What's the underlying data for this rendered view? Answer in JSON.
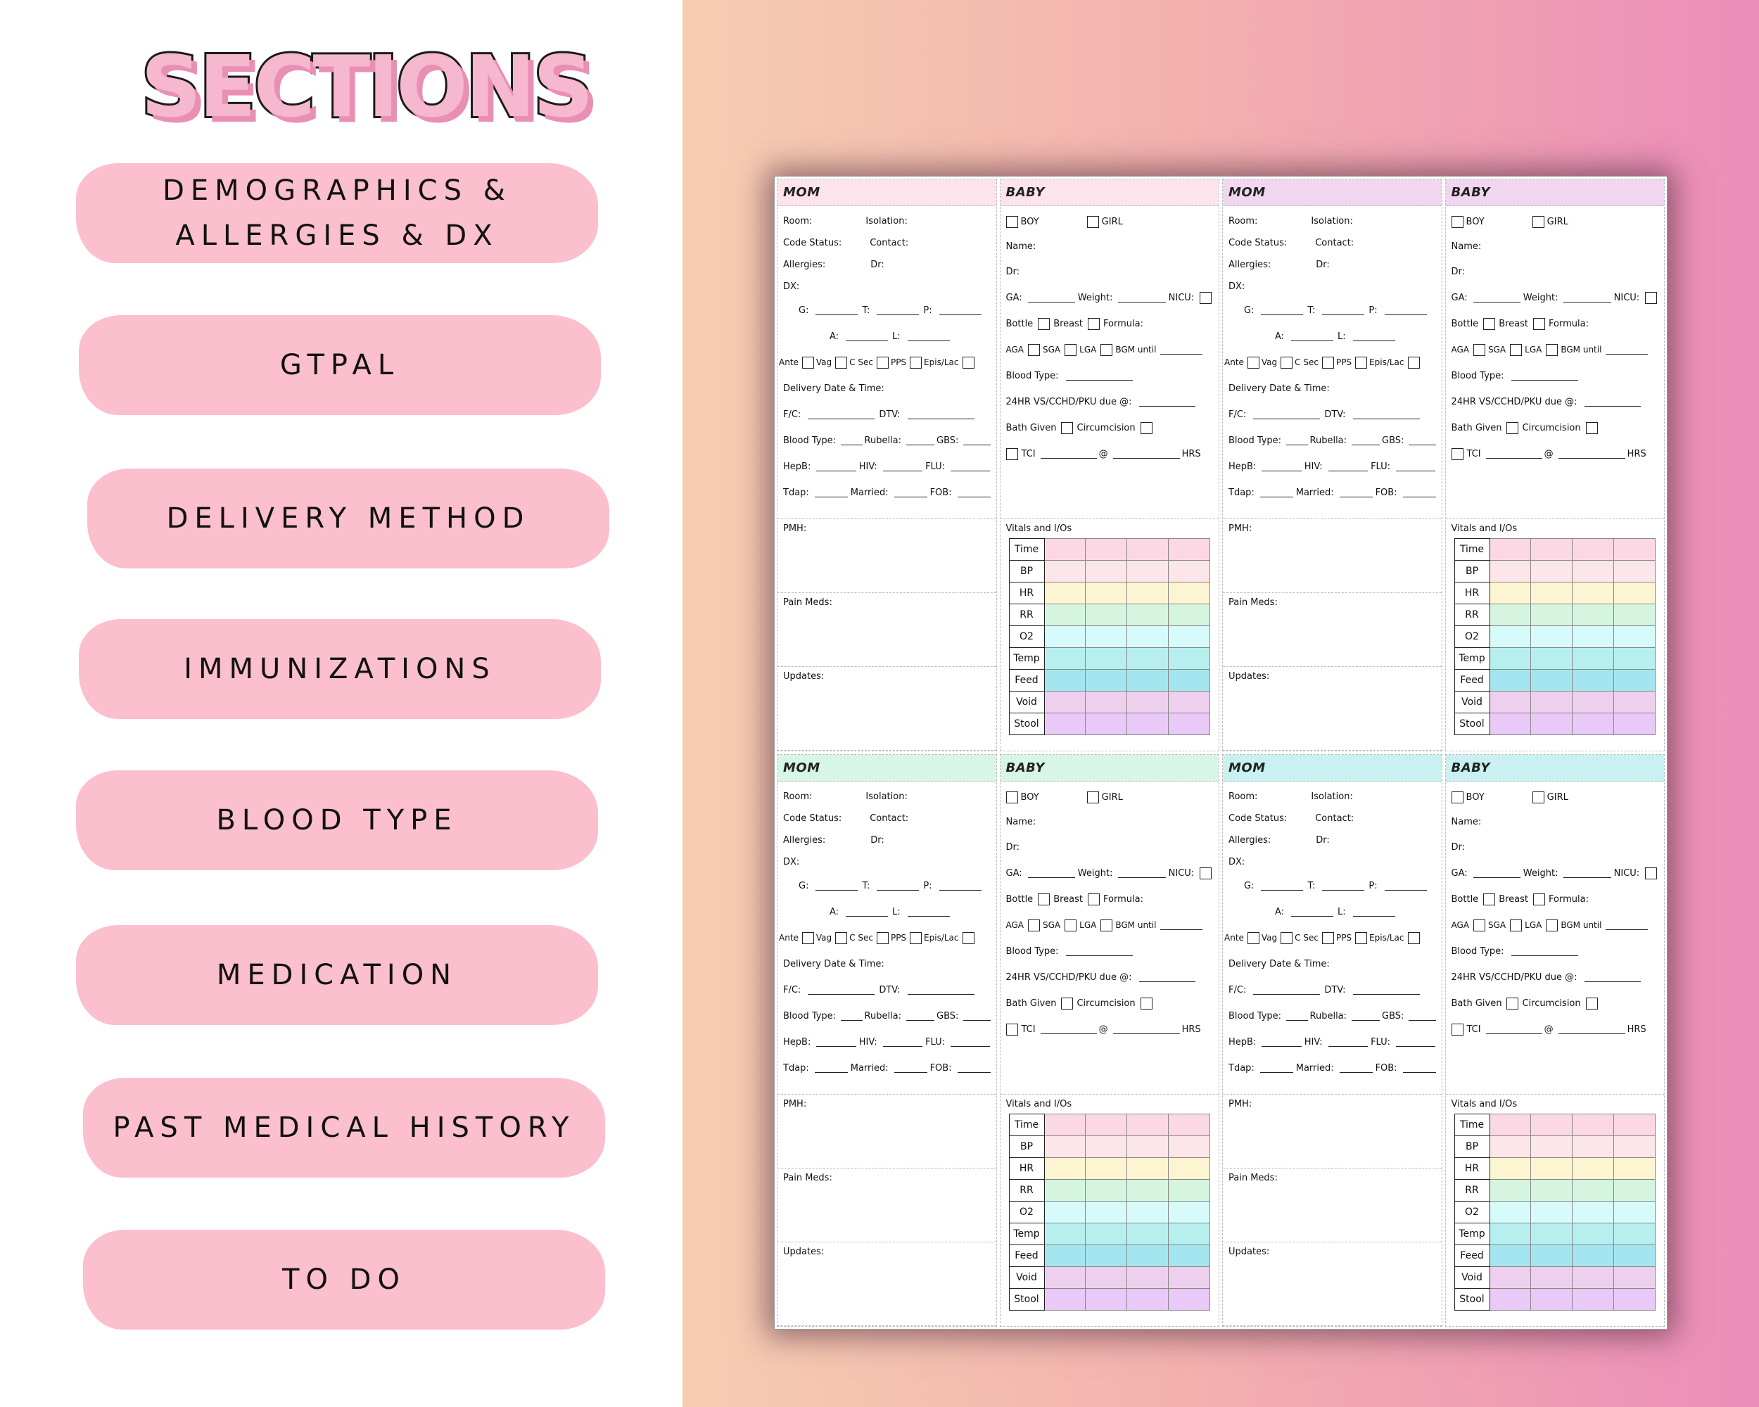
{
  "title": "SECTIONS",
  "sections": [
    {
      "label": "DEMOGRAPHICS &\nALLERGIES & DX"
    },
    {
      "label": "GTPAL"
    },
    {
      "label": "DELIVERY METHOD"
    },
    {
      "label": "IMMUNIZATIONS"
    },
    {
      "label": "BLOOD TYPE"
    },
    {
      "label": "MEDICATION"
    },
    {
      "label": "PAST MEDICAL HISTORY"
    },
    {
      "label": "TO DO"
    }
  ],
  "sheet": {
    "mom_header": "MOM",
    "baby_header": "BABY",
    "header_colors": [
      "#fde4ea",
      "#fde4ea",
      "#f0d6ee",
      "#f0d6ee",
      "#d8f6e6",
      "#d8f6e6",
      "#c9f1f1",
      "#c9f1f1"
    ],
    "mom": {
      "room": "Room:",
      "isolation": "Isolation:",
      "code_status": "Code Status:",
      "contact": "Contact:",
      "allergies": "Allergies:",
      "dr": "Dr:",
      "dx": "DX:",
      "g": "G:",
      "t": "T:",
      "p": "P:",
      "a": "A:",
      "l": "L:",
      "ante": "Ante",
      "vag": "Vag",
      "csec": "C Sec",
      "pps": "PPS",
      "epis": "Epis/Lac",
      "delivery": "Delivery Date & Time:",
      "fc": "F/C:",
      "dtv": "DTV:",
      "blood_type": "Blood Type:",
      "rubella": "Rubella:",
      "gbs": "GBS:",
      "hepb": "HepB:",
      "hiv": "HIV:",
      "flu": "FLU:",
      "tdap": "Tdap:",
      "married": "Married:",
      "fob": "FOB:",
      "pmh": "PMH:",
      "pain_meds": "Pain Meds:",
      "updates": "Updates:"
    },
    "baby": {
      "boy": "BOY",
      "girl": "GIRL",
      "name": "Name:",
      "dr": "Dr:",
      "ga": "GA:",
      "weight": "Weight:",
      "nicu": "NICU:",
      "bottle": "Bottle",
      "breast": "Breast",
      "formula": "Formula:",
      "aga": "AGA",
      "sga": "SGA",
      "lga": "LGA",
      "bgm": "BGM until",
      "blood_type": "Blood Type:",
      "vs_due": "24HR VS/CCHD/PKU due @:",
      "bath": "Bath Given",
      "circ": "Circumcision",
      "tci": "TCI",
      "at": "@",
      "hrs": "HRS",
      "vitals_title": "Vitals and I/Os",
      "vitals": [
        "Time",
        "BP",
        "HR",
        "RR",
        "O2",
        "Temp",
        "Feed",
        "Void",
        "Stool"
      ],
      "vitals_colors": [
        "#fcd8e5",
        "#fde6ea",
        "#fdf5d2",
        "#d5f5e0",
        "#d6fbfa",
        "#b7efef",
        "#a4e6f0",
        "#efcfee",
        "#e9c9f7"
      ]
    }
  }
}
